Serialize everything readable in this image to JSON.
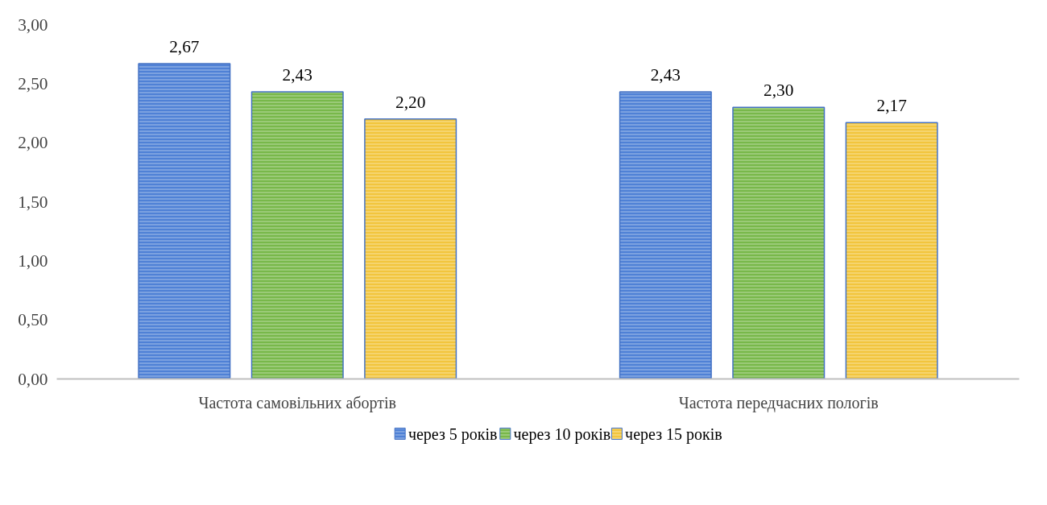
{
  "chart_data": {
    "type": "bar",
    "categories": [
      "Частота самовільних абортів",
      "Частота передчасних пологів"
    ],
    "series": [
      {
        "name": "через 5 років",
        "color": "#4f81d6",
        "values": [
          2.67,
          2.43
        ],
        "value_labels": [
          "2,67",
          "2,43"
        ]
      },
      {
        "name": "через 10 років",
        "color": "#78b84a",
        "values": [
          2.43,
          2.3
        ],
        "value_labels": [
          "2,43",
          "2,30"
        ]
      },
      {
        "name": "через 15 років",
        "color": "#f2c53d",
        "values": [
          2.2,
          2.17
        ],
        "value_labels": [
          "2,20",
          "2,17"
        ]
      }
    ],
    "ylim": [
      0,
      3
    ],
    "yticks": [
      {
        "value": 0,
        "label": "0,00"
      },
      {
        "value": 0.5,
        "label": "0,50"
      },
      {
        "value": 1,
        "label": "1,00"
      },
      {
        "value": 1.5,
        "label": "1,50"
      },
      {
        "value": 2,
        "label": "2,00"
      },
      {
        "value": 2.5,
        "label": "2,50"
      },
      {
        "value": 3,
        "label": "3,00"
      }
    ],
    "grid": false,
    "legend": "bottom"
  }
}
